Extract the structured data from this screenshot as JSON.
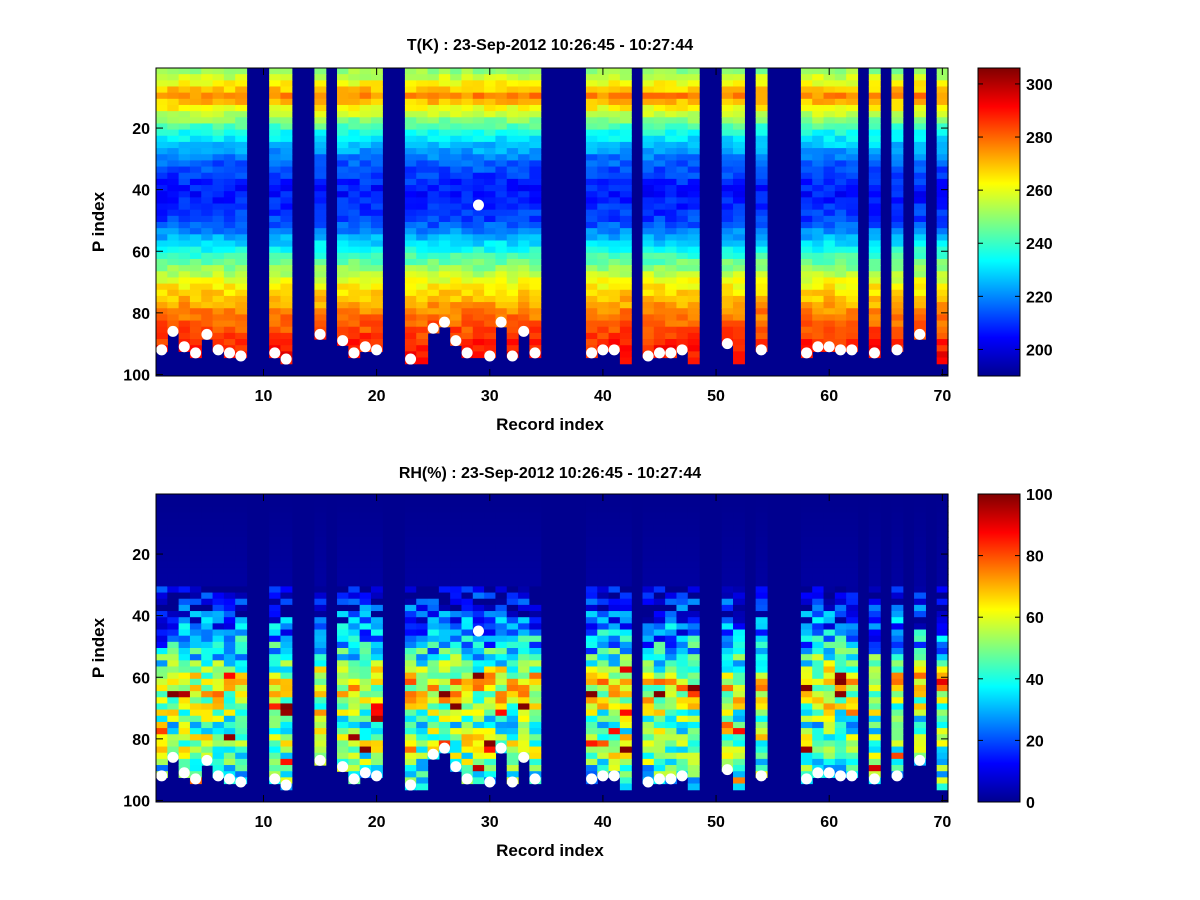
{
  "chart_data": [
    {
      "type": "heatmap",
      "title": "T(K) : 23-Sep-2012 10:26:45 - 10:27:44",
      "xlabel": "Record index",
      "ylabel": "P index",
      "xlim": [
        1,
        70
      ],
      "ylim": [
        1,
        100
      ],
      "y_reversed": true,
      "xticks": [
        10,
        20,
        30,
        40,
        50,
        60,
        70
      ],
      "yticks": [
        20,
        40,
        60,
        80,
        100
      ],
      "colormap": "jet",
      "clim": [
        190,
        306
      ],
      "colorbar_ticks": [
        200,
        220,
        240,
        260,
        280,
        300
      ],
      "fill_color": "#00008f",
      "grid": false,
      "profile_description": "Temperature profile per record: ~275 K near P index 10, cooling to ~205 K minimum around P index 40, warming to ~280-295 K near the surface (P index 80-95). Masked (fill) records shown in dark blue.",
      "profile_knots": {
        "p": [
          1,
          5,
          9,
          12,
          20,
          30,
          40,
          50,
          60,
          70,
          80,
          90,
          100
        ],
        "t": [
          250,
          262,
          276,
          266,
          238,
          216,
          206,
          212,
          238,
          262,
          278,
          288,
          296
        ]
      },
      "masked_records": [
        9,
        10,
        13,
        14,
        16,
        21,
        22,
        35,
        36,
        37,
        38,
        43,
        49,
        50,
        53,
        55,
        56,
        57,
        63,
        65,
        67,
        69
      ],
      "surface_p_index": {
        "1": 92,
        "2": 86,
        "3": 91,
        "4": 93,
        "5": 87,
        "6": 92,
        "7": 93,
        "8": 94,
        "11": 93,
        "12": 95,
        "15": 87,
        "17": 89,
        "18": 93,
        "19": 91,
        "20": 92,
        "23": 95,
        "24": 96,
        "25": 85,
        "26": 83,
        "27": 89,
        "28": 93,
        "29": 45,
        "30": 94,
        "31": 83,
        "32": 94,
        "33": 86,
        "34": 93,
        "39": 93,
        "40": 92,
        "41": 92,
        "42": 96,
        "44": 94,
        "45": 93,
        "46": 93,
        "47": 92,
        "48": 96,
        "51": 90,
        "52": 96,
        "54": 92,
        "58": 93,
        "59": 91,
        "60": 91,
        "61": 92,
        "62": 92,
        "64": 93,
        "66": 92,
        "68": 87,
        "70": 96
      },
      "markers": [
        {
          "x": 1,
          "y": 92
        },
        {
          "x": 2,
          "y": 86
        },
        {
          "x": 3,
          "y": 91
        },
        {
          "x": 4,
          "y": 93
        },
        {
          "x": 5,
          "y": 87
        },
        {
          "x": 6,
          "y": 92
        },
        {
          "x": 7,
          "y": 93
        },
        {
          "x": 8,
          "y": 94
        },
        {
          "x": 11,
          "y": 93
        },
        {
          "x": 12,
          "y": 95
        },
        {
          "x": 15,
          "y": 87
        },
        {
          "x": 17,
          "y": 89
        },
        {
          "x": 18,
          "y": 93
        },
        {
          "x": 19,
          "y": 91
        },
        {
          "x": 20,
          "y": 92
        },
        {
          "x": 23,
          "y": 95
        },
        {
          "x": 25,
          "y": 85
        },
        {
          "x": 26,
          "y": 83
        },
        {
          "x": 27,
          "y": 89
        },
        {
          "x": 28,
          "y": 93
        },
        {
          "x": 29,
          "y": 45
        },
        {
          "x": 30,
          "y": 94
        },
        {
          "x": 31,
          "y": 83
        },
        {
          "x": 32,
          "y": 94
        },
        {
          "x": 33,
          "y": 86
        },
        {
          "x": 34,
          "y": 93
        },
        {
          "x": 39,
          "y": 93
        },
        {
          "x": 40,
          "y": 92
        },
        {
          "x": 41,
          "y": 92
        },
        {
          "x": 44,
          "y": 94
        },
        {
          "x": 45,
          "y": 93
        },
        {
          "x": 46,
          "y": 93
        },
        {
          "x": 47,
          "y": 92
        },
        {
          "x": 51,
          "y": 90
        },
        {
          "x": 54,
          "y": 92
        },
        {
          "x": 58,
          "y": 93
        },
        {
          "x": 59,
          "y": 91
        },
        {
          "x": 60,
          "y": 91
        },
        {
          "x": 61,
          "y": 92
        },
        {
          "x": 62,
          "y": 92
        },
        {
          "x": 64,
          "y": 93
        },
        {
          "x": 66,
          "y": 92
        },
        {
          "x": 68,
          "y": 87
        }
      ]
    },
    {
      "type": "heatmap",
      "title": "RH(%) : 23-Sep-2012 10:26:45 - 10:27:44",
      "xlabel": "Record index",
      "ylabel": "P index",
      "xlim": [
        1,
        70
      ],
      "ylim": [
        1,
        100
      ],
      "y_reversed": true,
      "xticks": [
        10,
        20,
        30,
        40,
        50,
        60,
        70
      ],
      "yticks": [
        20,
        40,
        60,
        80,
        100
      ],
      "colormap": "jet",
      "clim": [
        0,
        100
      ],
      "colorbar_ticks": [
        0,
        20,
        40,
        60,
        80,
        100
      ],
      "fill_color": "#00008f",
      "grid": false,
      "profile_description": "Relative humidity per record: ~0-5% above P index 35, rising to ~40-65% between P index 55-75, patches of 70-100% near P index 70-90. Masked (fill) records shown in dark blue.",
      "profile_knots": {
        "p": [
          1,
          30,
          35,
          40,
          45,
          50,
          55,
          60,
          65,
          70,
          75,
          80,
          85,
          90,
          100
        ],
        "rh": [
          0,
          2,
          8,
          18,
          25,
          32,
          45,
          62,
          60,
          52,
          42,
          55,
          48,
          40,
          45
        ]
      },
      "masked_records": [
        9,
        10,
        13,
        14,
        16,
        21,
        22,
        35,
        36,
        37,
        38,
        43,
        49,
        50,
        53,
        55,
        56,
        57,
        63,
        65,
        67,
        69
      ],
      "surface_p_index": {
        "1": 92,
        "2": 86,
        "3": 91,
        "4": 93,
        "5": 87,
        "6": 92,
        "7": 93,
        "8": 94,
        "11": 93,
        "12": 95,
        "15": 87,
        "17": 89,
        "18": 93,
        "19": 91,
        "20": 92,
        "23": 95,
        "24": 96,
        "25": 85,
        "26": 83,
        "27": 89,
        "28": 93,
        "29": 45,
        "30": 94,
        "31": 83,
        "32": 94,
        "33": 86,
        "34": 93,
        "39": 93,
        "40": 92,
        "41": 92,
        "42": 96,
        "44": 94,
        "45": 93,
        "46": 93,
        "47": 92,
        "48": 96,
        "51": 90,
        "52": 96,
        "54": 92,
        "58": 93,
        "59": 91,
        "60": 91,
        "61": 92,
        "62": 92,
        "64": 93,
        "66": 92,
        "68": 87,
        "70": 96
      },
      "markers": [
        {
          "x": 1,
          "y": 92
        },
        {
          "x": 2,
          "y": 86
        },
        {
          "x": 3,
          "y": 91
        },
        {
          "x": 4,
          "y": 93
        },
        {
          "x": 5,
          "y": 87
        },
        {
          "x": 6,
          "y": 92
        },
        {
          "x": 7,
          "y": 93
        },
        {
          "x": 8,
          "y": 94
        },
        {
          "x": 11,
          "y": 93
        },
        {
          "x": 12,
          "y": 95
        },
        {
          "x": 15,
          "y": 87
        },
        {
          "x": 17,
          "y": 89
        },
        {
          "x": 18,
          "y": 93
        },
        {
          "x": 19,
          "y": 91
        },
        {
          "x": 20,
          "y": 92
        },
        {
          "x": 23,
          "y": 95
        },
        {
          "x": 25,
          "y": 85
        },
        {
          "x": 26,
          "y": 83
        },
        {
          "x": 27,
          "y": 89
        },
        {
          "x": 28,
          "y": 93
        },
        {
          "x": 29,
          "y": 45
        },
        {
          "x": 30,
          "y": 94
        },
        {
          "x": 31,
          "y": 83
        },
        {
          "x": 32,
          "y": 94
        },
        {
          "x": 33,
          "y": 86
        },
        {
          "x": 34,
          "y": 93
        },
        {
          "x": 39,
          "y": 93
        },
        {
          "x": 40,
          "y": 92
        },
        {
          "x": 41,
          "y": 92
        },
        {
          "x": 44,
          "y": 94
        },
        {
          "x": 45,
          "y": 93
        },
        {
          "x": 46,
          "y": 93
        },
        {
          "x": 47,
          "y": 92
        },
        {
          "x": 51,
          "y": 90
        },
        {
          "x": 54,
          "y": 92
        },
        {
          "x": 58,
          "y": 93
        },
        {
          "x": 59,
          "y": 91
        },
        {
          "x": 60,
          "y": 91
        },
        {
          "x": 61,
          "y": 92
        },
        {
          "x": 62,
          "y": 92
        },
        {
          "x": 64,
          "y": 93
        },
        {
          "x": 66,
          "y": 92
        },
        {
          "x": 68,
          "y": 87
        }
      ]
    }
  ]
}
